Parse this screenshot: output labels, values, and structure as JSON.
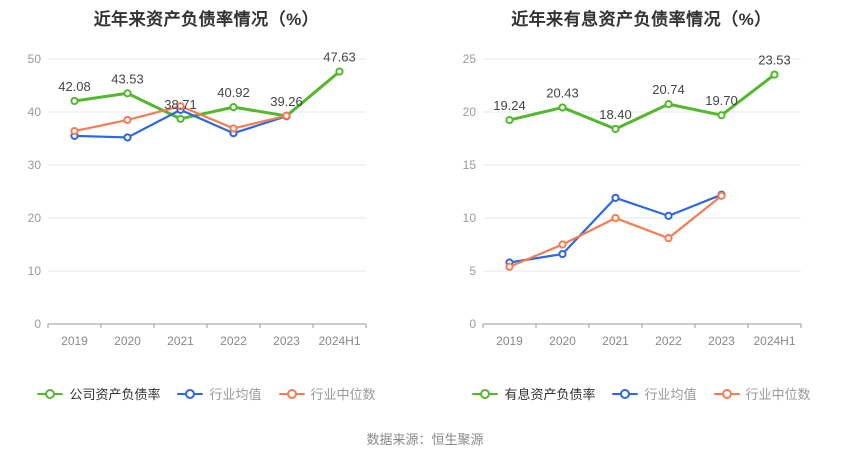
{
  "footer": {
    "source_text": "数据来源：恒生聚源"
  },
  "style": {
    "grid_color": "#e7e7e7",
    "axis_color": "#999999",
    "y_label_color": "#999999",
    "x_label_color": "#888888",
    "data_label_color": "#444444",
    "title_color": "#333333",
    "source_color": "#888888"
  },
  "chart_data": [
    {
      "type": "line",
      "title": "近年来资产负债率情况（%）",
      "categories": [
        "2019",
        "2020",
        "2021",
        "2022",
        "2023",
        "2024H1"
      ],
      "ylim": [
        0,
        50
      ],
      "y_interval": 10,
      "grid": true,
      "legend_position": "bottom",
      "series": [
        {
          "name": "公司资产负债率",
          "color": "#54b82e",
          "labeled": true,
          "values": [
            42.08,
            43.53,
            38.71,
            40.92,
            39.26,
            47.63
          ]
        },
        {
          "name": "行业均值",
          "color": "#2f67e0",
          "labeled": false,
          "values": [
            35.5,
            35.2,
            40.4,
            36.0,
            39.2,
            null
          ]
        },
        {
          "name": "行业中位数",
          "color": "#f87c52",
          "labeled": false,
          "values": [
            36.4,
            38.5,
            41.1,
            36.9,
            39.3,
            null
          ]
        }
      ]
    },
    {
      "type": "line",
      "title": "近年来有息资产负债率情况（%）",
      "categories": [
        "2019",
        "2020",
        "2021",
        "2022",
        "2023",
        "2024H1"
      ],
      "ylim": [
        0,
        25
      ],
      "y_interval": 5,
      "grid": true,
      "legend_position": "bottom",
      "series": [
        {
          "name": "有息资产负债率",
          "color": "#54b82e",
          "labeled": true,
          "values": [
            19.24,
            20.43,
            18.4,
            20.74,
            19.7,
            23.53
          ]
        },
        {
          "name": "行业均值",
          "color": "#2f67e0",
          "labeled": false,
          "values": [
            5.8,
            6.6,
            11.9,
            10.2,
            12.2,
            null
          ]
        },
        {
          "name": "行业中位数",
          "color": "#f87c52",
          "labeled": false,
          "values": [
            5.4,
            7.5,
            10.0,
            8.1,
            12.1,
            null
          ]
        }
      ]
    }
  ]
}
